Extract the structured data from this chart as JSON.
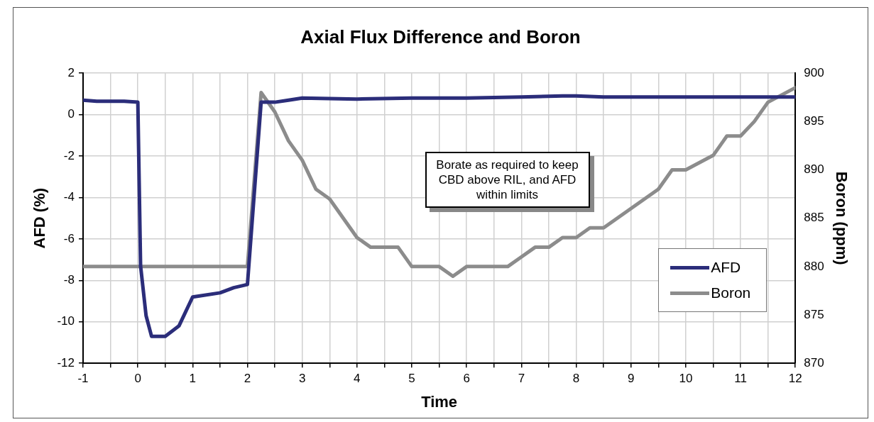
{
  "chart_data": {
    "type": "line",
    "title": "Axial Flux Difference and Boron",
    "xlabel": "Time",
    "ylabel": "AFD (%)",
    "y2label": "Boron (ppm)",
    "series": [
      {
        "name": "AFD",
        "color": "#2b2d7a",
        "x": [
          -1,
          -0.75,
          -0.5,
          -0.25,
          0,
          0.05,
          0.15,
          0.25,
          0.5,
          0.75,
          1,
          1.5,
          1.75,
          2,
          2.25,
          2.5,
          2.75,
          3,
          4,
          5,
          6,
          7,
          7.75,
          8,
          8.5,
          9,
          10,
          11,
          12
        ],
        "values": [
          0.7,
          0.65,
          0.65,
          0.65,
          0.6,
          -7.3,
          -9.7,
          -10.7,
          -10.7,
          -10.2,
          -8.8,
          -8.6,
          -8.35,
          -8.2,
          0.6,
          0.6,
          0.7,
          0.8,
          0.75,
          0.8,
          0.8,
          0.85,
          0.9,
          0.9,
          0.85,
          0.85,
          0.85,
          0.85,
          0.85
        ]
      },
      {
        "name": "Boron",
        "color": "#8c8c8c",
        "axis": "y2",
        "x": [
          -1,
          2,
          2.25,
          2.5,
          2.75,
          3,
          3.25,
          3.5,
          4,
          4.25,
          4.75,
          5,
          5.5,
          5.75,
          6,
          6.75,
          7,
          7.25,
          7.5,
          7.75,
          8,
          8.25,
          8.5,
          9,
          9.5,
          9.75,
          10,
          10.5,
          10.75,
          11,
          11.25,
          11.5,
          12
        ],
        "values": [
          880,
          880,
          898,
          896,
          893,
          891,
          888,
          887,
          883,
          882,
          882,
          880,
          880,
          879,
          880,
          880,
          881,
          882,
          882,
          883,
          883,
          884,
          884,
          886,
          888,
          890,
          890,
          891.5,
          893.5,
          893.5,
          895,
          897,
          898.5
        ]
      }
    ],
    "xlim": [
      -1,
      12
    ],
    "xticks": [
      -1,
      {
        "value": -0.5,
        "label": null
      },
      0,
      {
        "value": 0.5,
        "label": null
      },
      1,
      {
        "value": 1.5,
        "label": null
      },
      2,
      {
        "value": 2.5,
        "label": null
      },
      3,
      {
        "value": 3.5,
        "label": null
      },
      4,
      {
        "value": 4.5,
        "label": null
      },
      5,
      {
        "value": 5.5,
        "label": null
      },
      6,
      {
        "value": 6.5,
        "label": null
      },
      7,
      {
        "value": 7.5,
        "label": null
      },
      8,
      {
        "value": 8.5,
        "label": null
      },
      9,
      {
        "value": 9.5,
        "label": null
      },
      10,
      {
        "value": 10.5,
        "label": null
      },
      11,
      {
        "value": 11.5,
        "label": null
      },
      12
    ],
    "ylim": [
      -12,
      2
    ],
    "yticks": [
      -12,
      -10,
      -8,
      -6,
      -4,
      -2,
      0,
      2
    ],
    "y2lim": [
      870,
      900
    ],
    "y2ticks": [
      870,
      875,
      880,
      885,
      890,
      895,
      900
    ],
    "annotations": [
      "Borate as required to keep CBD above RIL, and AFD within limits"
    ],
    "grid": true,
    "legend": "bottom right",
    "marker": "none",
    "line_style": "solid"
  }
}
